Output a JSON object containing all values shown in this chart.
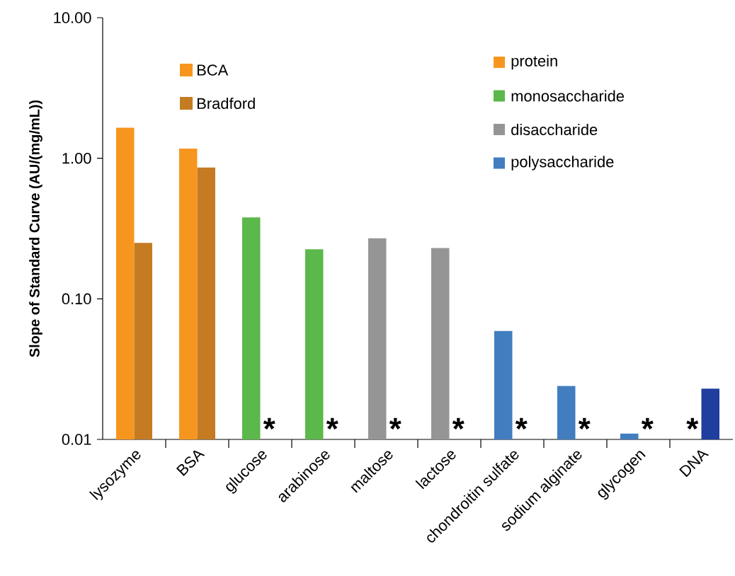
{
  "chart_data": {
    "type": "bar",
    "ylabel": "Slope of Standard Curve (AU/(mg/mL))",
    "log": "y",
    "ylim": [
      0.01,
      10
    ],
    "yticks": [
      {
        "value": 0.01,
        "label": "0.01"
      },
      {
        "value": 0.1,
        "label": "0.10"
      },
      {
        "value": 1,
        "label": "1.00"
      },
      {
        "value": 10,
        "label": "10.00"
      }
    ],
    "categories": [
      "lysozyme",
      "BSA",
      "glucose",
      "arabinose",
      "maltose",
      "lactose",
      "chondroitin sulfate",
      "sodium alginate",
      "glycogen",
      "DNA"
    ],
    "series": [
      {
        "name": "BCA",
        "values": [
          1.65,
          1.17,
          0.38,
          0.225,
          0.27,
          0.23,
          0.059,
          0.024,
          0.011,
          null
        ],
        "colors": [
          "#f7961f",
          "#f7961f",
          "#5bb84a",
          "#5bb84a",
          "#959595",
          "#959595",
          "#417dbf",
          "#417dbf",
          "#417dbf",
          "#417dbf"
        ],
        "value_labels": [
          null,
          null,
          null,
          null,
          null,
          null,
          null,
          null,
          null,
          "*"
        ]
      },
      {
        "name": "Bradford",
        "values": [
          0.25,
          0.86,
          null,
          null,
          null,
          null,
          null,
          null,
          null,
          0.023
        ],
        "colors": [
          "#c47b22",
          "#c47b22",
          "#c47b22",
          "#c47b22",
          "#c47b22",
          "#c47b22",
          "#417dbf",
          "#417dbf",
          "#417dbf",
          "#1f3e9e"
        ],
        "value_labels": [
          null,
          null,
          "*",
          "*",
          "*",
          "*",
          "*",
          "*",
          "*",
          null
        ]
      }
    ],
    "annotations": [
      "protein",
      "monosaccharide",
      "disaccharide",
      "polysaccharide"
    ],
    "legend": "top"
  }
}
